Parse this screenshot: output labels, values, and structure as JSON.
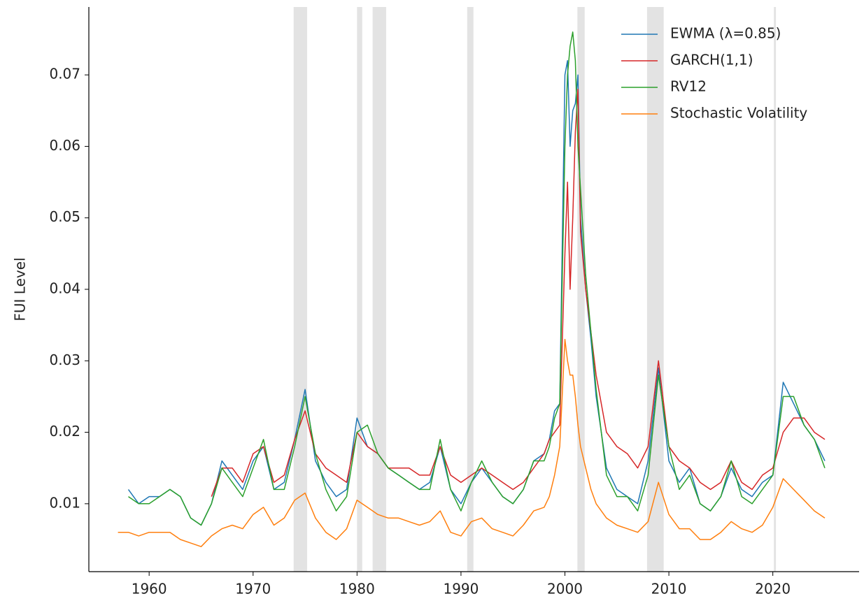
{
  "chart_data": {
    "type": "line",
    "y_label": "FUI Level",
    "x": [
      1957,
      1958,
      1959,
      1960,
      1961,
      1962,
      1963,
      1964,
      1965,
      1966,
      1967,
      1968,
      1969,
      1970,
      1971,
      1972,
      1973,
      1974,
      1975,
      1976,
      1977,
      1978,
      1979,
      1980,
      1981,
      1982,
      1983,
      1984,
      1985,
      1986,
      1987,
      1988,
      1989,
      1990,
      1991,
      1992,
      1993,
      1994,
      1995,
      1996,
      1997,
      1998,
      1998.5,
      1999,
      1999.5,
      2000,
      2000.25,
      2000.5,
      2000.75,
      2001,
      2001.25,
      2001.5,
      2002,
      2002.5,
      2003,
      2004,
      2005,
      2006,
      2007,
      2008,
      2009,
      2010,
      2011,
      2012,
      2013,
      2014,
      2015,
      2016,
      2017,
      2018,
      2019,
      2020,
      2021,
      2022,
      2023,
      2024,
      2025
    ],
    "series": [
      {
        "name": "EWMA (λ=0.85)",
        "color": "#1f77b4",
        "values": [
          null,
          0.012,
          0.01,
          0.011,
          0.011,
          0.012,
          0.011,
          0.008,
          0.007,
          0.01,
          0.016,
          0.014,
          0.012,
          0.016,
          0.018,
          0.012,
          0.013,
          0.019,
          0.026,
          0.016,
          0.013,
          0.011,
          0.012,
          0.022,
          0.018,
          0.017,
          0.015,
          0.014,
          0.013,
          0.012,
          0.013,
          0.018,
          0.012,
          0.01,
          0.013,
          0.015,
          0.013,
          0.011,
          0.01,
          0.012,
          0.016,
          0.017,
          0.019,
          0.023,
          0.024,
          0.07,
          0.072,
          0.06,
          0.065,
          0.066,
          0.07,
          0.05,
          0.04,
          0.033,
          0.025,
          0.015,
          0.012,
          0.011,
          0.01,
          0.016,
          0.029,
          0.016,
          0.013,
          0.015,
          0.01,
          0.009,
          0.011,
          0.015,
          0.012,
          0.011,
          0.013,
          0.014,
          0.027,
          0.024,
          0.021,
          0.019,
          0.016
        ]
      },
      {
        "name": "GARCH(1,1)",
        "color": "#d62728",
        "values": [
          null,
          null,
          null,
          null,
          null,
          null,
          null,
          null,
          null,
          0.011,
          0.015,
          0.015,
          0.013,
          0.017,
          0.018,
          0.013,
          0.014,
          0.019,
          0.023,
          0.017,
          0.015,
          0.014,
          0.013,
          0.02,
          0.018,
          0.017,
          0.015,
          0.015,
          0.015,
          0.014,
          0.014,
          0.018,
          0.014,
          0.013,
          0.014,
          0.015,
          0.014,
          0.013,
          0.012,
          0.013,
          0.015,
          0.017,
          0.019,
          0.02,
          0.021,
          0.045,
          0.055,
          0.04,
          0.05,
          0.062,
          0.068,
          0.048,
          0.04,
          0.034,
          0.028,
          0.02,
          0.018,
          0.017,
          0.015,
          0.018,
          0.03,
          0.018,
          0.016,
          0.015,
          0.013,
          0.012,
          0.013,
          0.016,
          0.013,
          0.012,
          0.014,
          0.015,
          0.02,
          0.022,
          0.022,
          0.02,
          0.019
        ]
      },
      {
        "name": "RV12",
        "color": "#2ca02c",
        "values": [
          null,
          0.011,
          0.01,
          0.01,
          0.011,
          0.012,
          0.011,
          0.008,
          0.007,
          0.01,
          0.015,
          0.013,
          0.011,
          0.015,
          0.019,
          0.012,
          0.012,
          0.018,
          0.025,
          0.017,
          0.012,
          0.009,
          0.011,
          0.02,
          0.021,
          0.017,
          0.015,
          0.014,
          0.013,
          0.012,
          0.012,
          0.019,
          0.012,
          0.009,
          0.013,
          0.016,
          0.013,
          0.011,
          0.01,
          0.012,
          0.016,
          0.016,
          0.018,
          0.022,
          0.024,
          0.06,
          0.07,
          0.074,
          0.076,
          0.072,
          0.06,
          0.054,
          0.042,
          0.034,
          0.026,
          0.014,
          0.011,
          0.011,
          0.009,
          0.014,
          0.028,
          0.018,
          0.012,
          0.014,
          0.01,
          0.009,
          0.011,
          0.016,
          0.011,
          0.01,
          0.012,
          0.014,
          0.025,
          0.025,
          0.021,
          0.019,
          0.015
        ]
      },
      {
        "name": "Stochastic Volatility",
        "color": "#ff7f0e",
        "values": [
          0.006,
          0.006,
          0.0055,
          0.006,
          0.006,
          0.006,
          0.005,
          0.0045,
          0.004,
          0.0055,
          0.0065,
          0.007,
          0.0065,
          0.0085,
          0.0095,
          0.007,
          0.008,
          0.0105,
          0.0115,
          0.008,
          0.006,
          0.005,
          0.0065,
          0.0105,
          0.0095,
          0.0085,
          0.008,
          0.008,
          0.0075,
          0.007,
          0.0075,
          0.009,
          0.006,
          0.0055,
          0.0075,
          0.008,
          0.0065,
          0.006,
          0.0055,
          0.007,
          0.009,
          0.0095,
          0.011,
          0.014,
          0.018,
          0.033,
          0.03,
          0.028,
          0.028,
          0.025,
          0.021,
          0.018,
          0.015,
          0.012,
          0.01,
          0.008,
          0.007,
          0.0065,
          0.006,
          0.0075,
          0.013,
          0.0085,
          0.0065,
          0.0065,
          0.005,
          0.005,
          0.006,
          0.0075,
          0.0065,
          0.006,
          0.007,
          0.0095,
          0.0135,
          0.012,
          0.0105,
          0.009,
          0.008
        ]
      }
    ],
    "shaded_regions": [
      [
        1973.9,
        1975.2
      ],
      [
        1980.0,
        1980.5
      ],
      [
        1981.5,
        1982.8
      ],
      [
        1990.6,
        1991.2
      ],
      [
        2001.2,
        2001.9
      ],
      [
        2007.9,
        2009.5
      ],
      [
        2020.1,
        2020.3
      ]
    ],
    "shade_color": "#e3e3e3",
    "xlim": [
      1954.2,
      2028.3
    ],
    "xticks": [
      1960,
      1970,
      1980,
      1990,
      2000,
      2010,
      2020
    ],
    "ylim": [
      0.0005,
      0.0795
    ],
    "yticks": [
      0.01,
      0.02,
      0.03,
      0.04,
      0.05,
      0.06,
      0.07
    ],
    "legend": "upper right"
  }
}
